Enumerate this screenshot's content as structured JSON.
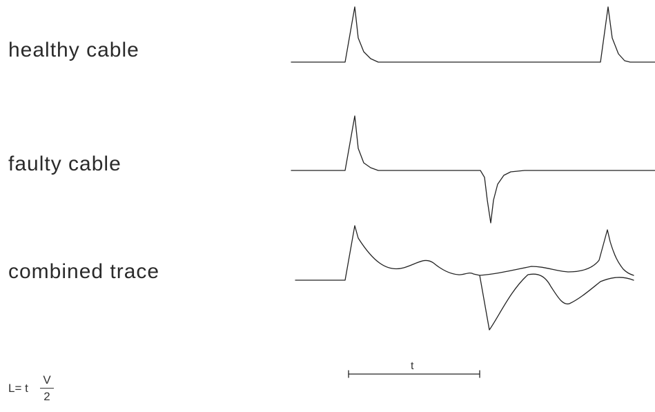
{
  "labels": {
    "healthy": "healthy cable",
    "faulty": "faulty cable",
    "combined": "combined trace"
  },
  "interval_label": "t",
  "formula": {
    "lhs": "L= t",
    "numerator": "V",
    "denominator": "2"
  },
  "colors": {
    "trace": "#222222",
    "background": "#ffffff"
  }
}
